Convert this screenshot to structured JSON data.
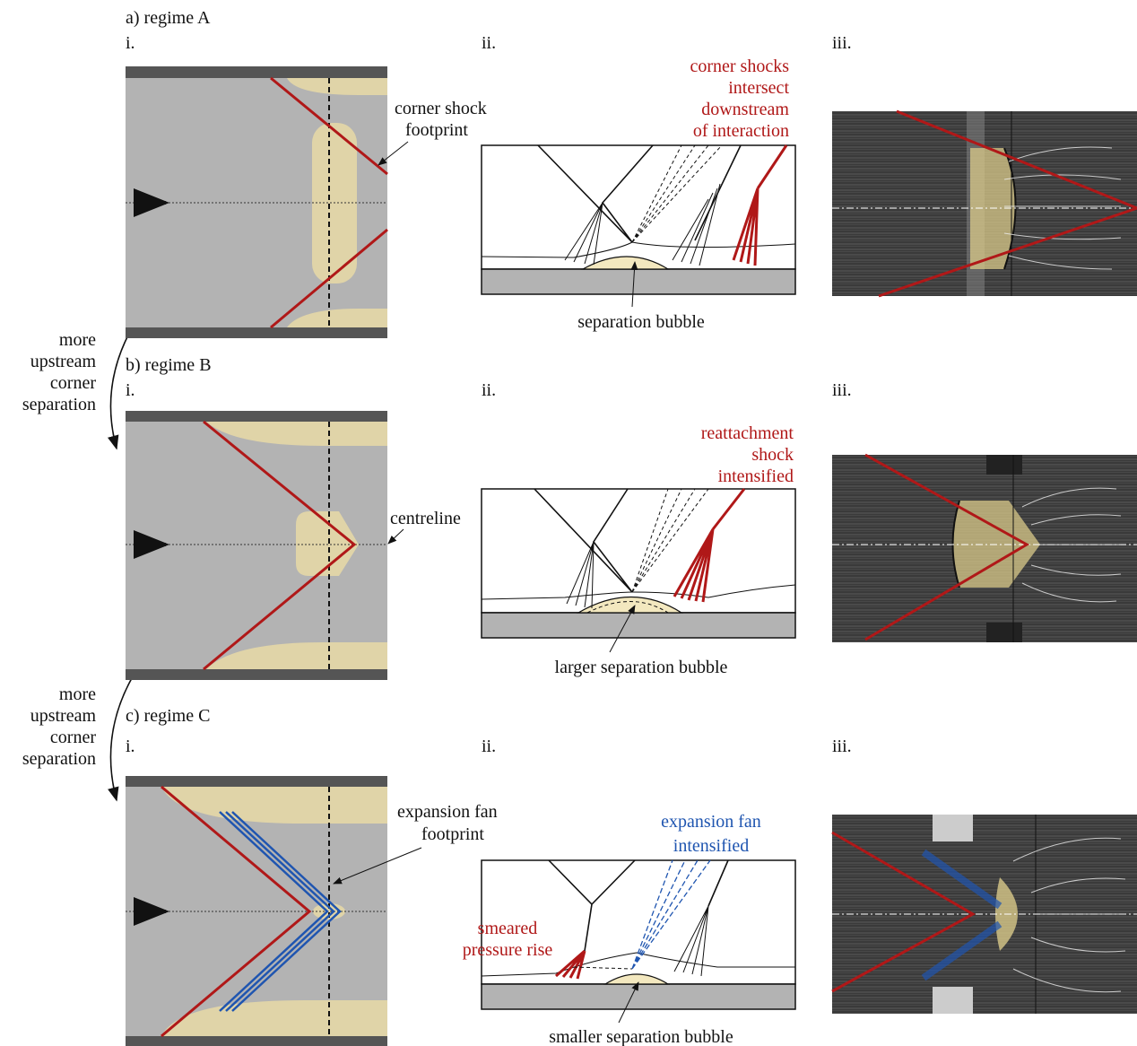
{
  "panels": [
    {
      "label": "a) regime A",
      "columns": [
        "i.",
        "ii.",
        "iii."
      ],
      "left_note": [
        "corner shock",
        "footprint"
      ],
      "mid_note": [
        "corner shocks",
        "intersect",
        "downstream",
        "of interaction"
      ],
      "bubble_note": "separation bubble"
    },
    {
      "label": "b) regime B",
      "columns": [
        "i.",
        "ii.",
        "iii."
      ],
      "left_note": [
        "centreline"
      ],
      "mid_note": [
        "reattachment",
        "shock",
        "intensified"
      ],
      "bubble_note": "larger separation bubble"
    },
    {
      "label": "c) regime C",
      "columns": [
        "i.",
        "ii.",
        "iii."
      ],
      "left_note": [
        "expansion fan",
        "footprint"
      ],
      "mid_note": [
        "expansion fan",
        "intensified"
      ],
      "side_note": [
        "smeared",
        "pressure rise"
      ],
      "bubble_note": "smaller separation bubble"
    }
  ],
  "transitions": [
    [
      "more",
      "upstream",
      "corner",
      "separation"
    ],
    [
      "more",
      "upstream",
      "corner",
      "separation"
    ]
  ]
}
